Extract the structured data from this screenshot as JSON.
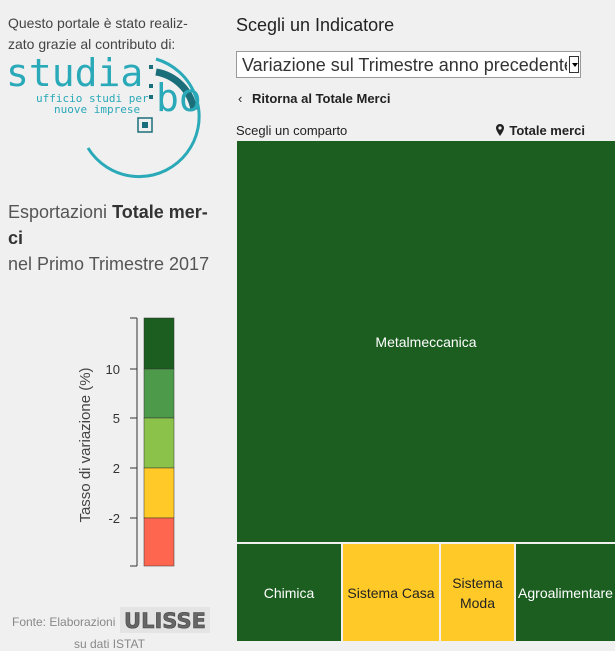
{
  "credit_text": "Questo portale è stato realiz- zato grazie al contributo di:",
  "logo": {
    "word1": "studia",
    "word2": "bo",
    "line1": "ufficio studi per",
    "line2": "nuove imprese",
    "colors": {
      "teal": "#2aa9b8",
      "dark": "#1b6f7a"
    }
  },
  "headline": {
    "prefix": "Esportazioni ",
    "bold": "Totale mer- ci",
    "suffix": "nel Primo Trimestre 2017"
  },
  "legend": {
    "axis_label": "Tasso di variazione (%)",
    "ticks": [
      "10",
      "5",
      "2",
      "-2"
    ],
    "colors": [
      "#1b5e20",
      "#4c9a4a",
      "#8bc34a",
      "#ffca28",
      "#ff6650"
    ]
  },
  "source": {
    "prefix": "Fonte: Elaborazioni",
    "logo_text": "ULISSE",
    "suffix": "su dati ISTAT"
  },
  "panel": {
    "title": "Scegli un Indicatore",
    "selected_indicator": "Variazione sul Trimestre anno precedente",
    "back_link": "Ritorna al Totale Merci",
    "choose_label": "Scegli un comparto",
    "scope_label": "Totale merci"
  },
  "treemap": [
    {
      "label": "Metalmeccanica",
      "color": "dark"
    },
    {
      "label": "Chimica",
      "color": "dark"
    },
    {
      "label": "Sistema Casa",
      "color": "yellow"
    },
    {
      "label": "Sistema Moda",
      "color": "yellow"
    },
    {
      "label": "Agroalimentare",
      "color": "dark"
    }
  ]
}
